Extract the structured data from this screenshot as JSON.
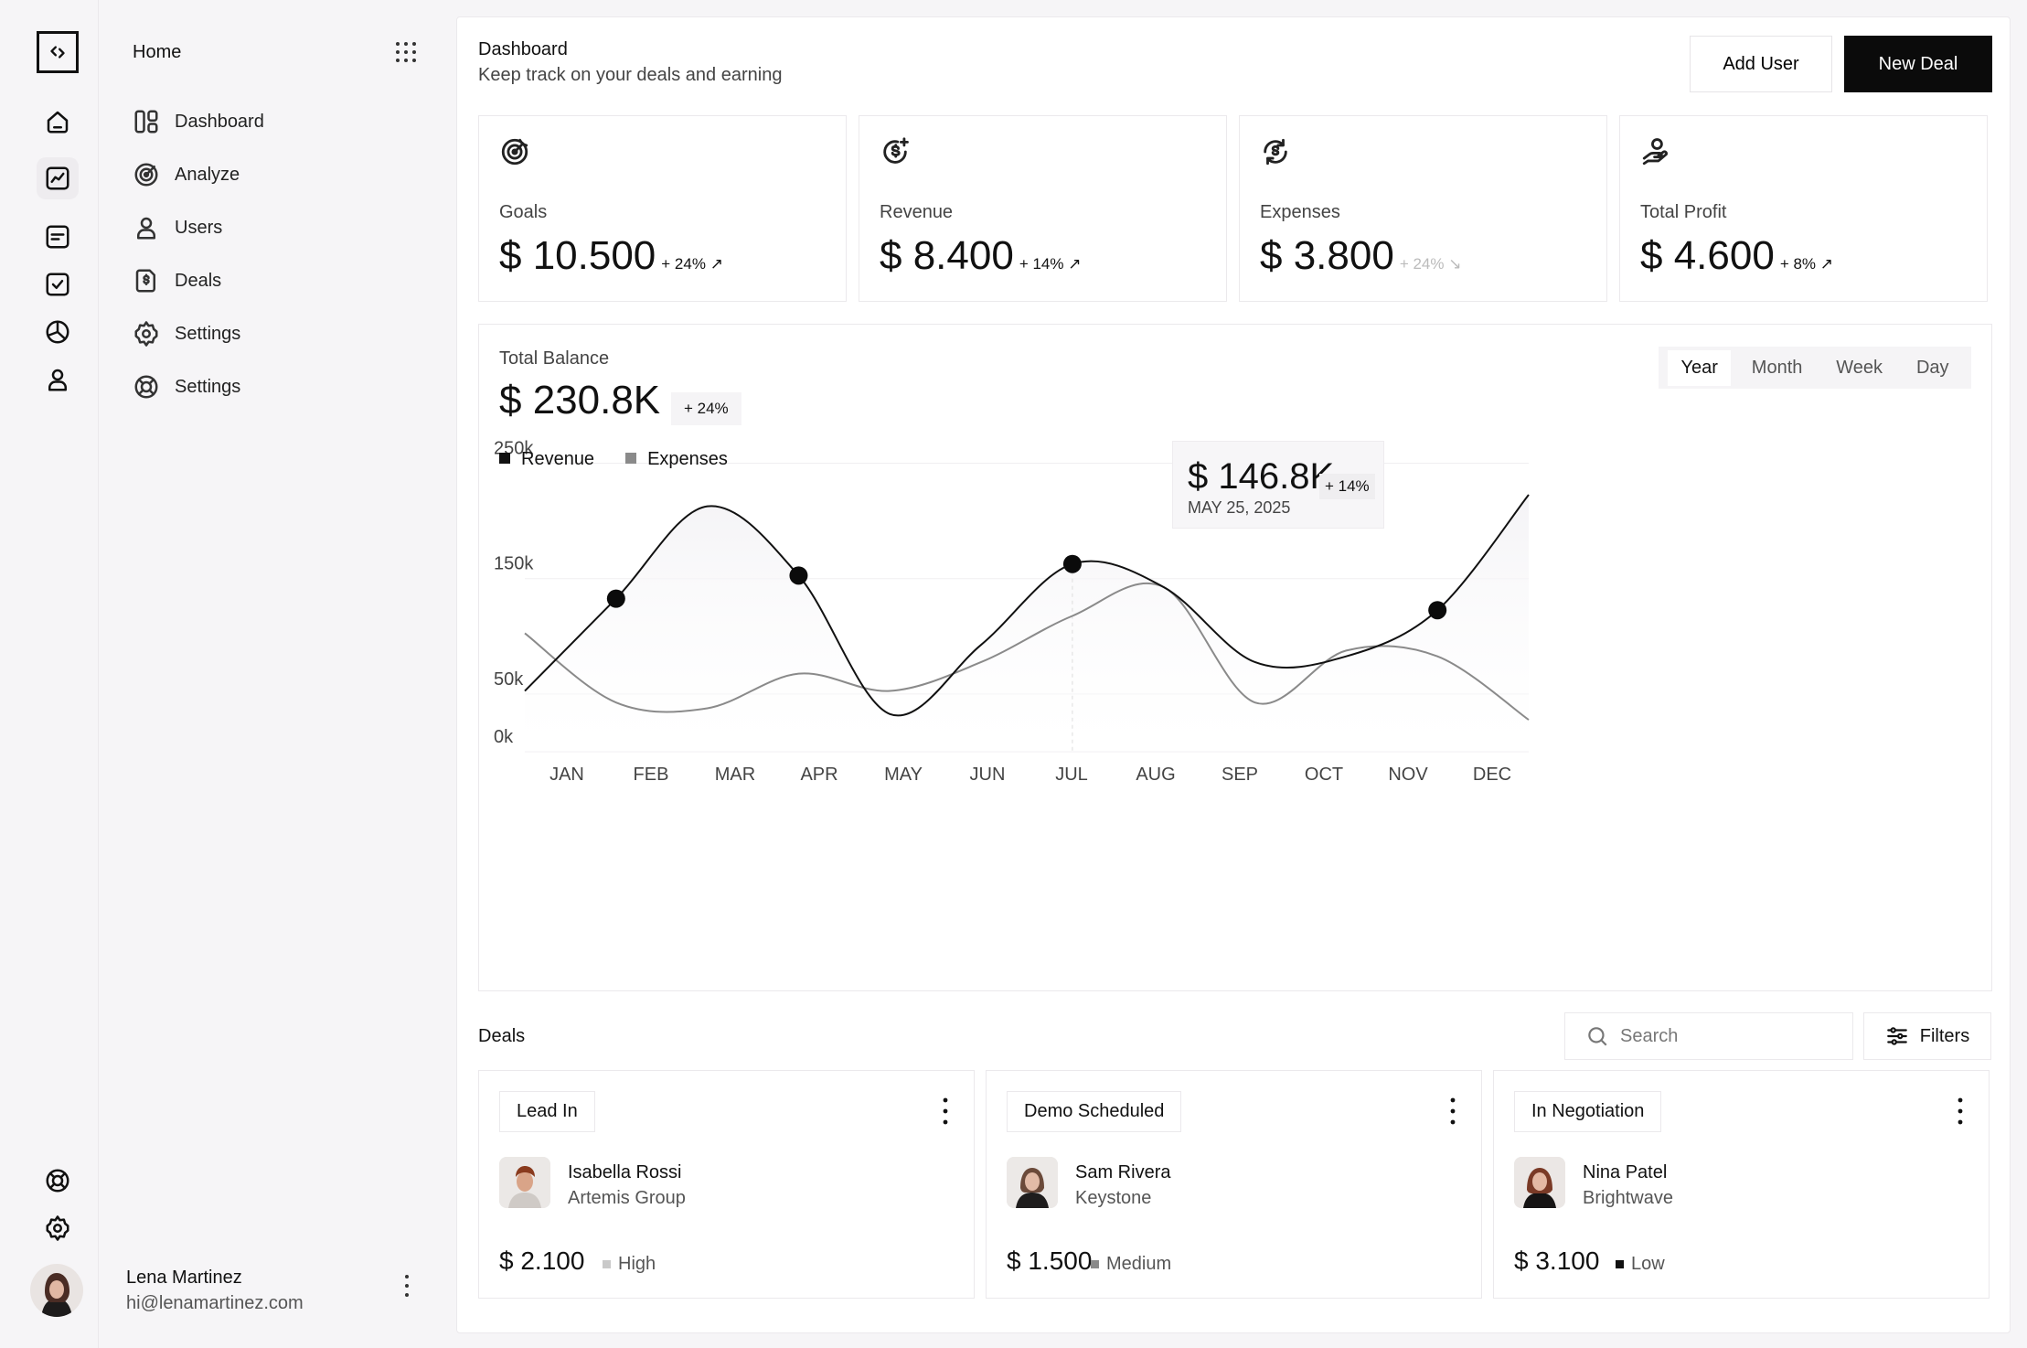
{
  "sidebar": {
    "home_label": "Home",
    "items": [
      {
        "label": "Dashboard",
        "icon": "layout-icon"
      },
      {
        "label": "Analyze",
        "icon": "target-icon"
      },
      {
        "label": "Users",
        "icon": "user-icon"
      },
      {
        "label": "Deals",
        "icon": "dollar-file-icon"
      },
      {
        "label": "Settings",
        "icon": "gear-icon"
      },
      {
        "label": "Settings",
        "icon": "lifebuoy-icon"
      }
    ]
  },
  "profile": {
    "name": "Lena Martinez",
    "email": "hi@lenamartinez.com"
  },
  "header": {
    "title": "Dashboard",
    "subtitle": "Keep track on your deals and earning",
    "add_user_label": "Add User",
    "new_deal_label": "New Deal"
  },
  "stats": [
    {
      "label": "Goals",
      "value": "$ 10.500",
      "change": "+ 24%",
      "trend": "up"
    },
    {
      "label": "Revenue",
      "value": "$ 8.400",
      "change": "+ 14%",
      "trend": "up"
    },
    {
      "label": "Expenses",
      "value": "$ 3.800",
      "change": "+ 24%",
      "trend": "down"
    },
    {
      "label": "Total Profit",
      "value": "$ 4.600",
      "change": "+ 8%",
      "trend": "up"
    }
  ],
  "balance": {
    "label": "Total Balance",
    "value": "$ 230.8K",
    "change": "+ 24%",
    "periods": [
      "Year",
      "Month",
      "Week",
      "Day"
    ],
    "active_period": "Year"
  },
  "tooltip": {
    "value": "$ 146.8K",
    "change": "+ 14%",
    "date": "MAY 25, 2025"
  },
  "chart_data": {
    "type": "line",
    "categories": [
      "JAN",
      "FEB",
      "MAR",
      "APR",
      "MAY",
      "JUN",
      "JUL",
      "AUG",
      "SEP",
      "OCT",
      "NOV",
      "DEC"
    ],
    "y_ticks": [
      "250k",
      "150k",
      "50k",
      "0k"
    ],
    "ylim": [
      0,
      275
    ],
    "series": [
      {
        "name": "Revenue",
        "color": "#111111",
        "values": [
          40,
          120,
          200,
          140,
          20,
          80,
          150,
          130,
          65,
          70,
          110,
          210
        ]
      },
      {
        "name": "Expenses",
        "color": "#8a8a8a",
        "values": [
          90,
          30,
          25,
          55,
          40,
          65,
          105,
          130,
          30,
          75,
          70,
          15
        ]
      }
    ],
    "markers": [
      {
        "series": 0,
        "x": 1.0,
        "y": 120
      },
      {
        "series": 0,
        "x": 3.0,
        "y": 140
      },
      {
        "series": 0,
        "x": 6.0,
        "y": 150
      },
      {
        "series": 0,
        "x": 10.0,
        "y": 110
      }
    ]
  },
  "deals": {
    "title": "Deals",
    "search_placeholder": "Search",
    "filters_label": "Filters",
    "cards": [
      {
        "stage": "Lead In",
        "name": "Isabella Rossi",
        "company": "Artemis Group",
        "amount": "$ 2.100",
        "priority": "High",
        "priority_color": "#c9c9c9"
      },
      {
        "stage": "Demo Scheduled",
        "name": "Sam Rivera",
        "company": "Keystone",
        "amount": "$ 1.500",
        "priority": "Medium",
        "priority_color": "#8a8a8a"
      },
      {
        "stage": "In Negotiation",
        "name": "Nina Patel",
        "company": "Brightwave",
        "amount": "$ 3.100",
        "priority": "Low",
        "priority_color": "#111111"
      }
    ]
  }
}
